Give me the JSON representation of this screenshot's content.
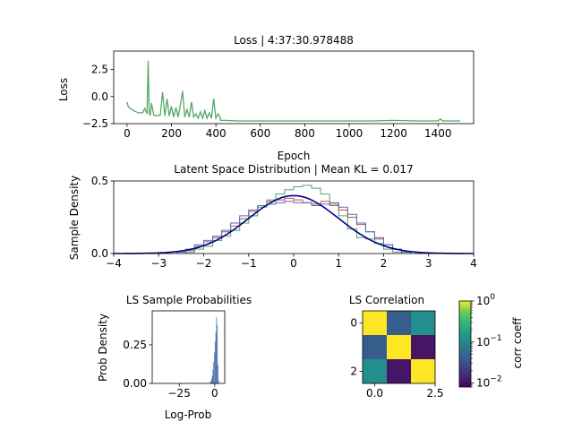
{
  "chart_data": [
    {
      "type": "line",
      "title": "Loss | 4:37:30.978488",
      "xlabel": "Epoch",
      "ylabel": "Loss",
      "xlim": [
        -60,
        1560
      ],
      "ylim": [
        -2.5,
        4.2
      ],
      "xticks": [
        0,
        200,
        400,
        600,
        800,
        1000,
        1200,
        1400
      ],
      "yticks": [
        -2.5,
        0.0,
        2.5
      ],
      "ytick_labels": [
        "−2.5",
        "0.0",
        "2.5"
      ],
      "series": [
        {
          "color": "#55a868",
          "x": [
            0,
            5,
            15,
            30,
            50,
            70,
            80,
            90,
            95,
            100,
            105,
            110,
            120,
            130,
            150,
            160,
            170,
            180,
            190,
            200,
            210,
            220,
            230,
            240,
            250,
            260,
            270,
            280,
            290,
            300,
            310,
            320,
            330,
            340,
            350,
            360,
            370,
            380,
            390,
            400,
            410,
            420,
            421,
            440,
            500,
            600,
            700,
            800,
            900,
            1000,
            1100,
            1200,
            1300,
            1400,
            1410,
            1420,
            1500
          ],
          "y": [
            -0.5,
            -0.9,
            -1.1,
            -1.3,
            -1.5,
            -1.5,
            -1.1,
            -1.6,
            3.3,
            -1.6,
            -1.7,
            -0.6,
            -1.7,
            -1.8,
            -1.7,
            0.4,
            -1.8,
            -0.2,
            -1.8,
            -0.9,
            -1.9,
            -1.0,
            -1.9,
            -0.8,
            0.5,
            -1.9,
            -1.2,
            -1.9,
            -0.5,
            -1.9,
            -1.6,
            -2.0,
            -1.4,
            -2.0,
            -1.3,
            -2.0,
            -1.5,
            -2.0,
            -0.2,
            -2.0,
            -1.6,
            -2.0,
            -2.2,
            -2.2,
            -2.25,
            -2.25,
            -2.25,
            -2.25,
            -2.25,
            -2.25,
            -2.25,
            -2.2,
            -2.25,
            -2.25,
            -2.05,
            -2.25,
            -2.25
          ]
        }
      ]
    },
    {
      "type": "line",
      "title": "Latent Space Distribution | Mean KL = 0.017",
      "xlabel": "",
      "ylabel": "Sample Density",
      "xlim": [
        -4,
        4
      ],
      "ylim": [
        0,
        0.5
      ],
      "xticks": [
        -4,
        -3,
        -2,
        -1,
        0,
        1,
        2,
        3,
        4
      ],
      "xtick_labels": [
        "−4",
        "−3",
        "−2",
        "−1",
        "0",
        "1",
        "2",
        "3",
        "4"
      ],
      "yticks": [
        0.0,
        0.5
      ],
      "ytick_labels": [
        "0.0",
        "0.5"
      ],
      "curve": {
        "color": "#00008b",
        "distribution": "standard normal"
      },
      "histograms": [
        {
          "color": "#55a868",
          "bin_edges": [
            -2.4,
            -2.2,
            -2.0,
            -1.8,
            -1.6,
            -1.4,
            -1.2,
            -1.0,
            -0.8,
            -0.6,
            -0.4,
            -0.2,
            0.0,
            0.2,
            0.4,
            0.6,
            0.8,
            1.0,
            1.2,
            1.4,
            1.6,
            1.8,
            2.0,
            2.2,
            2.4
          ],
          "values": [
            0.01,
            0.03,
            0.05,
            0.09,
            0.12,
            0.16,
            0.21,
            0.26,
            0.32,
            0.37,
            0.41,
            0.44,
            0.46,
            0.47,
            0.45,
            0.41,
            0.34,
            0.26,
            0.17,
            0.11,
            0.1,
            0.07,
            0.03,
            0.01
          ]
        },
        {
          "color": "#c44e52",
          "bin_edges": [
            -2.6,
            -2.4,
            -2.2,
            -2.0,
            -1.8,
            -1.6,
            -1.4,
            -1.2,
            -1.0,
            -0.8,
            -0.6,
            -0.4,
            -0.2,
            0.0,
            0.2,
            0.4,
            0.6,
            0.8,
            1.0,
            1.2,
            1.4,
            1.6,
            1.8,
            2.0,
            2.2,
            2.4,
            2.6
          ],
          "values": [
            0.01,
            0.02,
            0.05,
            0.08,
            0.11,
            0.15,
            0.19,
            0.24,
            0.29,
            0.33,
            0.36,
            0.37,
            0.38,
            0.37,
            0.35,
            0.34,
            0.36,
            0.33,
            0.3,
            0.25,
            0.2,
            0.15,
            0.11,
            0.06,
            0.03,
            0.01
          ]
        },
        {
          "color": "#4c72b0",
          "bin_edges": [
            -2.6,
            -2.4,
            -2.2,
            -2.0,
            -1.8,
            -1.6,
            -1.4,
            -1.2,
            -1.0,
            -0.8,
            -0.6,
            -0.4,
            -0.2,
            0.0,
            0.2,
            0.4,
            0.6,
            0.8,
            1.0,
            1.2,
            1.4,
            1.6,
            1.8,
            2.0,
            2.2,
            2.4,
            2.6
          ],
          "values": [
            0.01,
            0.03,
            0.06,
            0.09,
            0.12,
            0.16,
            0.21,
            0.26,
            0.3,
            0.33,
            0.34,
            0.35,
            0.36,
            0.35,
            0.35,
            0.33,
            0.34,
            0.35,
            0.32,
            0.27,
            0.21,
            0.15,
            0.1,
            0.06,
            0.03,
            0.01
          ]
        }
      ]
    },
    {
      "type": "bar",
      "title": "LS Sample Probabilities",
      "xlabel": "Log-Prob",
      "ylabel": "Prob Density",
      "xlim": [
        -44,
        7
      ],
      "ylim": [
        0,
        0.47
      ],
      "xticks": [
        -25,
        0
      ],
      "xtick_labels": [
        "−25",
        "0"
      ],
      "yticks": [
        0.0,
        0.25
      ],
      "ytick_labels": [
        "0.00",
        "0.25"
      ],
      "color": "#4c72b0",
      "bin_edges": [
        -4,
        -3.5,
        -3,
        -2.5,
        -2,
        -1.5,
        -1,
        -0.5,
        0,
        0.5,
        1,
        1.5,
        2,
        2.5,
        3
      ],
      "values": [
        0.004,
        0.008,
        0.015,
        0.03,
        0.05,
        0.09,
        0.14,
        0.2,
        0.27,
        0.33,
        0.43,
        0.38,
        0.12,
        0.02
      ]
    },
    {
      "type": "heatmap",
      "title": "LS Correlation",
      "xticks": [
        0.0,
        2.5
      ],
      "xtick_labels": [
        "0.0",
        "2.5"
      ],
      "yticks": [
        0,
        2
      ],
      "ytick_labels": [
        "0",
        "2"
      ],
      "matrix": [
        [
          1.0,
          0.04,
          0.12
        ],
        [
          0.04,
          1.0,
          0.011
        ],
        [
          0.12,
          0.011,
          1.0
        ]
      ],
      "colorbar": {
        "label": "corr coeff",
        "scale": "log",
        "range": [
          0.008,
          1.0
        ],
        "ticks": [
          "10",
          "10",
          "10"
        ],
        "exponents": [
          "0",
          "−1",
          "−2"
        ],
        "colormap": "viridis"
      }
    }
  ]
}
